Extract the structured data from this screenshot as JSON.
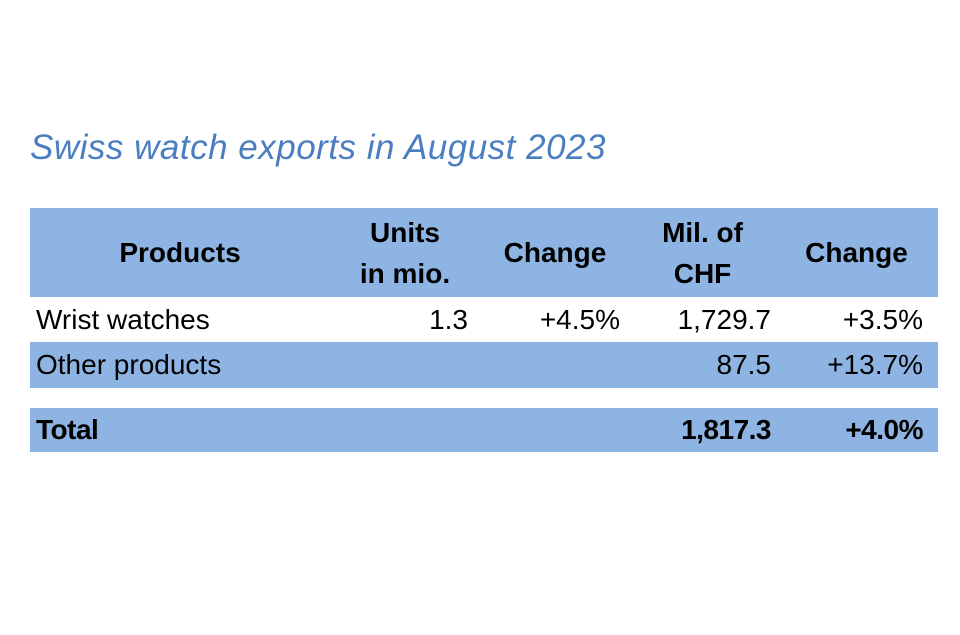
{
  "title": "Swiss watch exports in August 2023",
  "colors": {
    "title_blue": "#4a7ec1",
    "table_fill_blue": "#8db4e2",
    "text": "#000000",
    "background": "#ffffff"
  },
  "table": {
    "columns": [
      {
        "label": "Products",
        "lines": [
          "Products"
        ]
      },
      {
        "label": "Units in mio.",
        "lines": [
          "Units",
          "in mio."
        ]
      },
      {
        "label": "Change",
        "lines": [
          "Change"
        ]
      },
      {
        "label": "Mil. of CHF",
        "lines": [
          "Mil. of",
          "CHF"
        ]
      },
      {
        "label": "Change",
        "lines": [
          "Change"
        ]
      }
    ],
    "rows": [
      {
        "product": "Wrist watches",
        "units": "1.3",
        "units_change": "+4.5%",
        "chf": "1,729.7",
        "chf_change": "+3.5%"
      },
      {
        "product": "Other products",
        "units": "",
        "units_change": "",
        "chf": "87.5",
        "chf_change": "+13.7%"
      }
    ],
    "total": {
      "product": "Total",
      "units": "",
      "units_change": "",
      "chf": "1,817.3",
      "chf_change": "+4.0%"
    }
  },
  "chart_data": {
    "type": "table",
    "title": "Swiss watch exports in August 2023",
    "columns": [
      "Products",
      "Units in mio.",
      "Change",
      "Mil. of CHF",
      "Change"
    ],
    "rows": [
      [
        "Wrist watches",
        "1.3",
        "+4.5%",
        "1,729.7",
        "+3.5%"
      ],
      [
        "Other products",
        "",
        "",
        "87.5",
        "+13.7%"
      ],
      [
        "Total",
        "",
        "",
        "1,817.3",
        "+4.0%"
      ]
    ]
  }
}
